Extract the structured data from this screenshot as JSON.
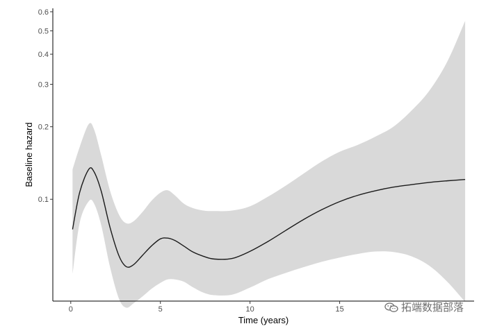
{
  "chart_data": {
    "type": "line",
    "title": "",
    "xlabel": "Time (years)",
    "ylabel": "Baseline hazard",
    "xlim": [
      -1,
      22.5
    ],
    "ylim": [
      0.0378,
      0.62
    ],
    "y_scale": "log",
    "x_ticks": [
      0,
      5,
      10,
      15
    ],
    "x_tick_labels": [
      "0",
      "5",
      "10",
      "15"
    ],
    "y_ticks": [
      0.1,
      0.2,
      0.3,
      0.4,
      0.5,
      0.6
    ],
    "y_tick_labels": [
      "0.1",
      "0.2",
      "0.3",
      "0.4",
      "0.5",
      "0.6"
    ],
    "grid": false,
    "line_color": "#1a1a1a",
    "band_color": "#d9d9d9",
    "series": [
      {
        "x": [
          0.1,
          0.5,
          1.0,
          1.3,
          1.7,
          2.2,
          2.7,
          3.1,
          3.5,
          4.0,
          4.5,
          5.0,
          5.4,
          5.8,
          6.3,
          6.8,
          7.4,
          8.0,
          9.0,
          10.0,
          11.0,
          12.0,
          13.0,
          14.0,
          15.0,
          16.0,
          17.0,
          18.0,
          19.0,
          20.0,
          21.0,
          22.0
        ],
        "y": [
          0.075,
          0.107,
          0.133,
          0.13,
          0.108,
          0.076,
          0.058,
          0.0525,
          0.0535,
          0.0585,
          0.064,
          0.0685,
          0.069,
          0.0675,
          0.064,
          0.0605,
          0.058,
          0.0565,
          0.0568,
          0.0608,
          0.0668,
          0.0743,
          0.0825,
          0.0905,
          0.0978,
          0.1038,
          0.1085,
          0.1123,
          0.115,
          0.1175,
          0.1193,
          0.1208
        ],
        "lower": [
          0.049,
          0.08,
          0.098,
          0.096,
          0.078,
          0.052,
          0.0385,
          0.0355,
          0.037,
          0.0395,
          0.0425,
          0.045,
          0.0465,
          0.0465,
          0.0455,
          0.0432,
          0.041,
          0.04,
          0.0402,
          0.043,
          0.0466,
          0.0495,
          0.0523,
          0.055,
          0.0573,
          0.0593,
          0.0607,
          0.0604,
          0.058,
          0.053,
          0.0455,
          0.0375
        ],
        "upper": [
          0.133,
          0.165,
          0.205,
          0.195,
          0.152,
          0.108,
          0.086,
          0.0795,
          0.081,
          0.0885,
          0.0985,
          0.1065,
          0.109,
          0.104,
          0.096,
          0.092,
          0.0898,
          0.0893,
          0.0898,
          0.0935,
          0.1025,
          0.114,
          0.128,
          0.1435,
          0.1575,
          0.168,
          0.182,
          0.2,
          0.233,
          0.282,
          0.372,
          0.55
        ]
      }
    ]
  },
  "watermark": {
    "text": "拓端数据部落",
    "icon": "wechat-icon"
  }
}
